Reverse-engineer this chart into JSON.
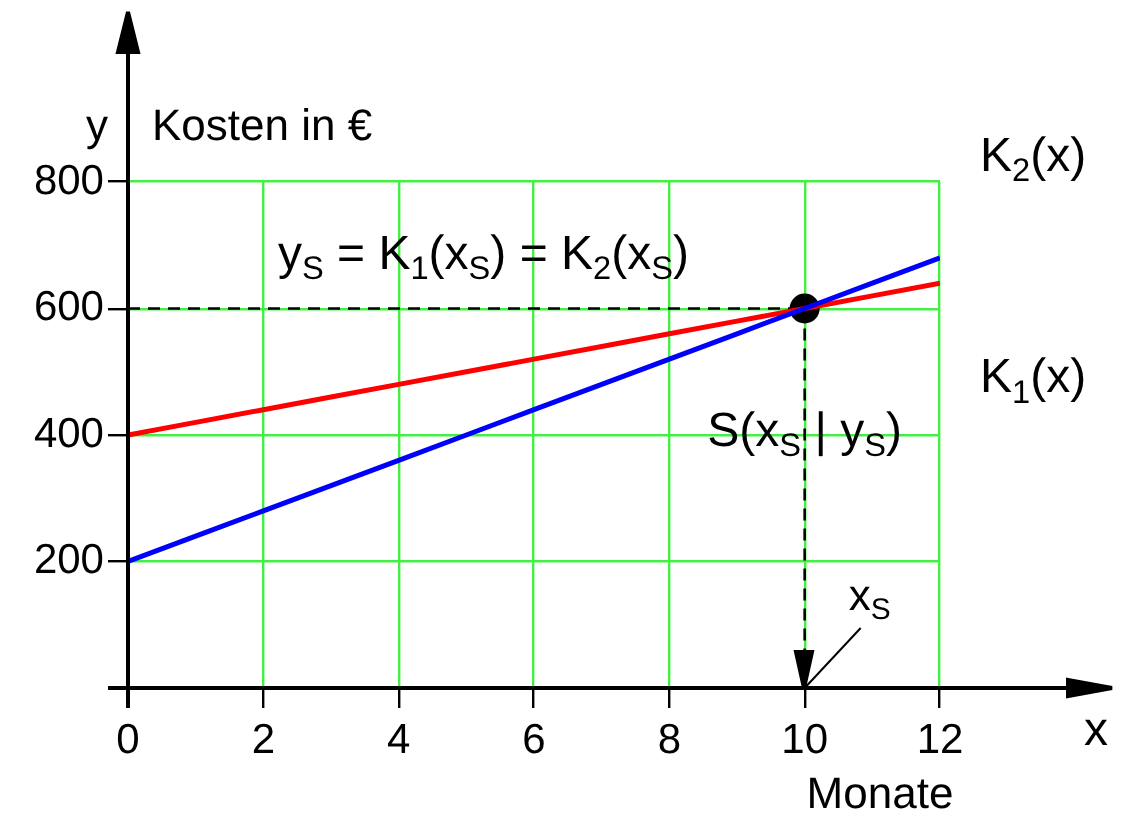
{
  "chart_data": {
    "type": "line",
    "x": [
      0,
      1,
      2,
      3,
      4,
      5,
      6,
      7,
      8,
      9,
      10,
      11,
      12
    ],
    "series": [
      {
        "name": "K$_{2}$(x)",
        "color": "#0000ff",
        "values": [
          200,
          240,
          280,
          320,
          360,
          400,
          440,
          480,
          520,
          560,
          600,
          640,
          680
        ]
      },
      {
        "name": "K$_{1}$(x)",
        "color": "#ff0000",
        "values": [
          400,
          420,
          440,
          460,
          480,
          500,
          520,
          540,
          560,
          580,
          600,
          620,
          640
        ]
      },
      {
        "type": "scatter",
        "color": "#000000",
        "x": [
          10
        ],
        "values": [
          600
        ],
        "marker": "circle"
      }
    ],
    "xlabel": "Monate",
    "ylabel": "Kosten in €",
    "xlim": [
      0,
      12
    ],
    "xticks": [
      0,
      2,
      4,
      6,
      8,
      10,
      12
    ],
    "ylim": [
      0,
      800
    ],
    "yticks": [
      {
        "value": 0,
        "label": null
      },
      200,
      400,
      600,
      800
    ],
    "grid": true,
    "legend": false,
    "marker": "none",
    "ref_lines": [
      {
        "axis": "y",
        "value": 600,
        "color": "#000000",
        "line_style": "dashed"
      },
      {
        "axis": "x",
        "value": 10,
        "color": "#000000",
        "line_style": "dashed"
      }
    ],
    "annotations": [
      "y",
      "x",
      "y$_{S}$ = K$_{1}$(x$_{S}$) = K$_{2}$(x$_{S}$)",
      {
        "text": "S(x$_{S}$ | y$_{S}$)",
        "x": 10,
        "y": 600
      },
      "x$_{S}$"
    ]
  }
}
